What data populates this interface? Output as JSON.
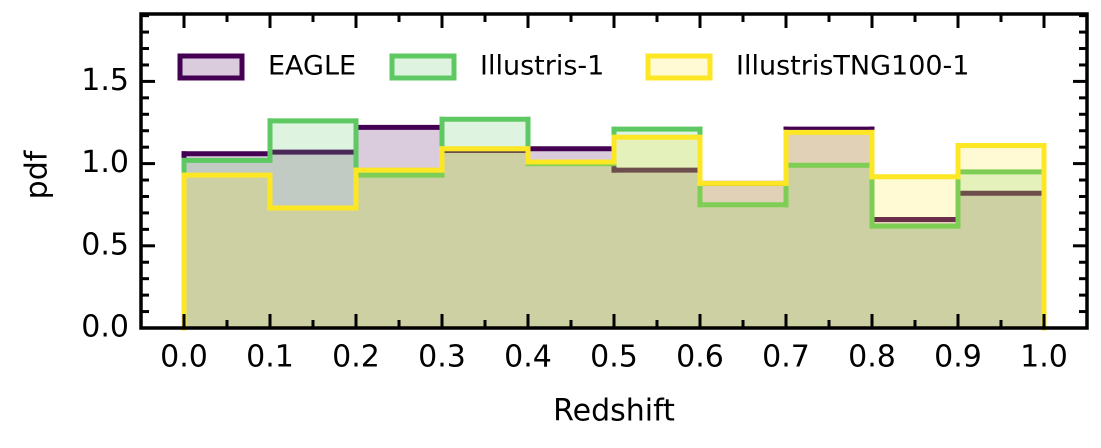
{
  "chart_data": {
    "type": "histogram",
    "xlabel": "Redshift",
    "ylabel": "pdf",
    "bins": [
      0,
      0.1,
      0.2,
      0.3,
      0.4,
      0.5,
      0.6,
      0.7,
      0.8,
      0.9,
      1.0
    ],
    "series": [
      {
        "name": "EAGLE",
        "color": "#440154",
        "values": [
          1.06,
          1.07,
          1.22,
          1.08,
          1.09,
          0.96,
          0.88,
          1.21,
          0.66,
          0.82
        ]
      },
      {
        "name": "Illustris-1",
        "color": "#5ec962",
        "values": [
          1.02,
          1.26,
          0.93,
          1.27,
          1.0,
          1.21,
          0.75,
          0.99,
          0.62,
          0.95
        ]
      },
      {
        "name": "IllustrisTNG100-1",
        "color": "#fde725",
        "values": [
          0.93,
          0.73,
          0.96,
          1.09,
          1.01,
          1.16,
          0.88,
          1.19,
          0.92,
          1.11
        ]
      }
    ],
    "xlim": [
      -0.05,
      1.05
    ],
    "ylim": [
      0,
      1.91
    ],
    "xticks": [
      {
        "value": 0,
        "label": "0.0"
      },
      {
        "value": 0.1,
        "label": "0.1"
      },
      {
        "value": 0.2,
        "label": "0.2"
      },
      {
        "value": 0.3,
        "label": "0.3"
      },
      {
        "value": 0.4,
        "label": "0.4"
      },
      {
        "value": 0.5,
        "label": "0.5"
      },
      {
        "value": 0.6,
        "label": "0.6"
      },
      {
        "value": 0.7,
        "label": "0.7"
      },
      {
        "value": 0.8,
        "label": "0.8"
      },
      {
        "value": 0.9,
        "label": "0.9"
      },
      {
        "value": 1.0,
        "label": "1.0"
      }
    ],
    "yticks": [
      {
        "value": 0,
        "label": "0.0"
      },
      {
        "value": 0.5,
        "label": "0.5"
      },
      {
        "value": 1.0,
        "label": "1.0"
      },
      {
        "value": 1.5,
        "label": "1.5"
      }
    ],
    "xminorticks": [
      -0.05,
      0.05,
      0.15,
      0.25,
      0.35,
      0.45,
      0.55,
      0.65,
      0.75,
      0.85,
      0.95,
      1.05
    ],
    "yminorticks": [
      0.1,
      0.2,
      0.3,
      0.4,
      0.6,
      0.7,
      0.8,
      0.9,
      1.1,
      1.2,
      1.3,
      1.4,
      1.6,
      1.7,
      1.8,
      1.9
    ],
    "legend": "upper left",
    "fill_alpha": 0.2,
    "grid": false
  }
}
